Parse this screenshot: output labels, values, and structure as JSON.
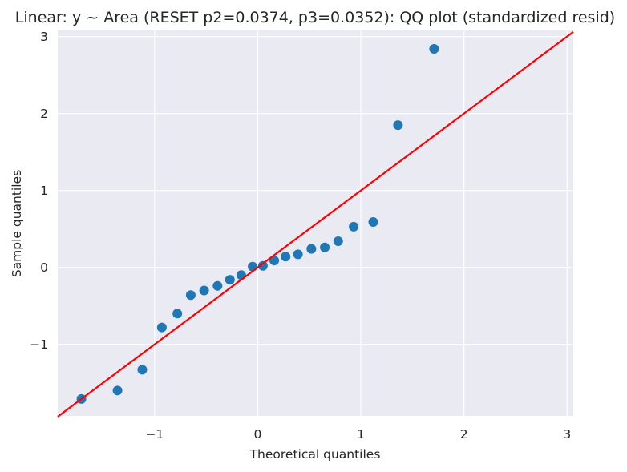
{
  "chart_data": {
    "type": "scatter",
    "title": "Linear: y ~ Area (RESET p2=0.0374, p3=0.0352): QQ plot (standardized resid)",
    "xlabel": "Theoretical quantiles",
    "ylabel": "Sample quantiles",
    "xlim": [
      -1.94,
      3.06
    ],
    "ylim": [
      -1.93,
      3.08
    ],
    "xticks": [
      -1,
      0,
      1,
      2,
      3
    ],
    "xtick_labels": [
      "−1",
      "0",
      "1",
      "2",
      "3"
    ],
    "yticks": [
      -1,
      0,
      1,
      2,
      3
    ],
    "ytick_labels": [
      "−1",
      "0",
      "1",
      "2",
      "3"
    ],
    "grid": true,
    "background": "#eaeaf2",
    "marker_color": "#1f77b4",
    "reference_line": {
      "color": "#ff0000",
      "slope": 1,
      "intercept": 0
    },
    "points": {
      "x": [
        -1.71,
        -1.36,
        -1.12,
        -0.93,
        -0.78,
        -0.65,
        -0.52,
        -0.39,
        -0.27,
        -0.16,
        -0.05,
        0.05,
        0.16,
        0.27,
        0.39,
        0.52,
        0.65,
        0.78,
        0.93,
        1.12,
        1.36,
        1.71
      ],
      "y": [
        -1.71,
        -1.6,
        -1.33,
        -0.78,
        -0.6,
        -0.36,
        -0.3,
        -0.24,
        -0.16,
        -0.1,
        0.01,
        0.02,
        0.09,
        0.14,
        0.17,
        0.24,
        0.26,
        0.34,
        0.53,
        0.59,
        1.85,
        2.84
      ]
    }
  }
}
